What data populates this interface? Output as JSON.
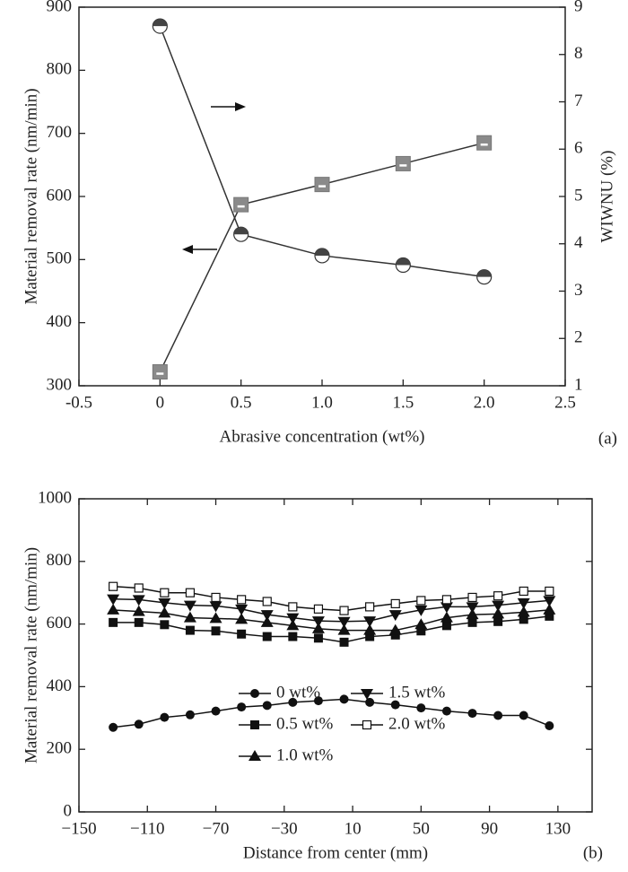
{
  "chart_data": [
    {
      "type": "line",
      "x_label": "Abrasive concentration (wt%)",
      "y_label": "Material removal rate (nm/min)",
      "y2_label": "WIWNU (%)",
      "panel_label": "(a)",
      "xlim": [
        -0.5,
        2.5
      ],
      "xticks": [
        -0.5,
        0,
        0.5,
        {
          "value": 1,
          "label": "1.0"
        },
        1.5,
        {
          "value": 2,
          "label": "2.0"
        },
        2.5
      ],
      "ylim": [
        300,
        900
      ],
      "yticks": [
        300,
        400,
        500,
        600,
        700,
        800,
        900
      ],
      "y2lim": [
        1,
        9
      ],
      "y2ticks": [
        1,
        2,
        3,
        4,
        5,
        6,
        7,
        8,
        9
      ],
      "series": [
        {
          "marker": "square-gray",
          "color": "#333333",
          "x": [
            0,
            0.5,
            1,
            1.5,
            2
          ],
          "values": [
            322,
            587,
            619,
            652,
            685
          ]
        },
        {
          "marker": "circle-half",
          "color": "#333333",
          "axis": "y2",
          "x": [
            0,
            0.5,
            1,
            1.5,
            2
          ],
          "values": [
            8.6,
            4.2,
            3.75,
            3.55,
            3.3
          ]
        }
      ]
    },
    {
      "type": "line",
      "x_label": "Distance from center (mm)",
      "y_label": "Material removal rate (nm/min)",
      "panel_label": "(b)",
      "legend": "lower center",
      "xlim": [
        -150,
        150
      ],
      "xticks": [
        {
          "value": -150,
          "label": "−150"
        },
        {
          "value": -110,
          "label": "−110"
        },
        {
          "value": -70,
          "label": "−70"
        },
        {
          "value": -30,
          "label": "−30"
        },
        10,
        50,
        90,
        130
      ],
      "ylim": [
        0,
        1000
      ],
      "yticks": [
        0,
        200,
        400,
        600,
        800,
        1000
      ],
      "series": [
        {
          "name": "0 wt%",
          "marker": "circle",
          "color": "#111111",
          "x": [
            -130,
            -115,
            -100,
            -85,
            -70,
            -55,
            -40,
            -25,
            -10,
            5,
            20,
            35,
            50,
            65,
            80,
            95,
            110,
            125
          ],
          "values": [
            270,
            280,
            302,
            310,
            322,
            335,
            340,
            350,
            355,
            360,
            350,
            342,
            332,
            322,
            315,
            308,
            308,
            275
          ]
        },
        {
          "name": "0.5 wt%",
          "marker": "square",
          "color": "#111111",
          "x": [
            -130,
            -115,
            -100,
            -85,
            -70,
            -55,
            -40,
            -25,
            -10,
            5,
            20,
            35,
            50,
            65,
            80,
            95,
            110,
            125
          ],
          "values": [
            605,
            605,
            598,
            580,
            578,
            568,
            560,
            560,
            555,
            542,
            560,
            565,
            578,
            595,
            605,
            608,
            615,
            625
          ]
        },
        {
          "name": "1.0 wt%",
          "marker": "triangle-up",
          "color": "#111111",
          "x": [
            -130,
            -115,
            -100,
            -85,
            -70,
            -55,
            -40,
            -25,
            -10,
            5,
            20,
            35,
            50,
            65,
            80,
            95,
            110,
            125
          ],
          "values": [
            645,
            640,
            635,
            620,
            618,
            615,
            605,
            595,
            585,
            580,
            580,
            580,
            598,
            620,
            630,
            632,
            638,
            645
          ]
        },
        {
          "name": "1.5 wt%",
          "marker": "triangle-down",
          "color": "#111111",
          "x": [
            -130,
            -115,
            -100,
            -85,
            -70,
            -55,
            -40,
            -25,
            -10,
            5,
            20,
            35,
            50,
            65,
            80,
            95,
            110,
            125
          ],
          "values": [
            680,
            678,
            668,
            660,
            658,
            648,
            630,
            620,
            610,
            608,
            610,
            630,
            645,
            655,
            655,
            660,
            668,
            675
          ]
        },
        {
          "name": "2.0 wt%",
          "marker": "square-open",
          "color": "#111111",
          "x": [
            -130,
            -115,
            -100,
            -85,
            -70,
            -55,
            -40,
            -25,
            -10,
            5,
            20,
            35,
            50,
            65,
            80,
            95,
            110,
            125
          ],
          "values": [
            720,
            715,
            700,
            700,
            685,
            678,
            672,
            655,
            648,
            643,
            655,
            665,
            675,
            678,
            685,
            690,
            705,
            705
          ]
        }
      ]
    }
  ]
}
